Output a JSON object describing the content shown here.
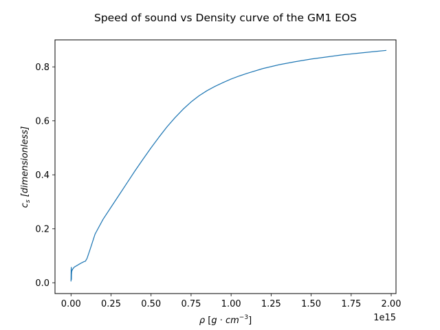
{
  "chart_data": {
    "type": "line",
    "title": "Speed of sound vs Density curve of the GM1 EOS",
    "xlabel": {
      "symbol": "ρ",
      "unit_open": " [",
      "unit_g": "g",
      "unit_dot": " · ",
      "unit_cm": "cm",
      "unit_exp": "−3",
      "unit_close": "]"
    },
    "ylabel": {
      "symbol": "c",
      "sub": "s",
      "unit": " [dimensionless]"
    },
    "x_offset_label": "1e15",
    "xlim": [
      -0.1,
      2.03
    ],
    "ylim": [
      -0.04,
      0.9
    ],
    "grid": false,
    "x_tick_values": [
      0.0,
      0.25,
      0.5,
      0.75,
      1.0,
      1.25,
      1.5,
      1.75,
      2.0
    ],
    "x_tick_labels": [
      "0.00",
      "0.25",
      "0.50",
      "0.75",
      "1.00",
      "1.25",
      "1.50",
      "1.75",
      "2.00"
    ],
    "y_tick_values": [
      0.0,
      0.2,
      0.4,
      0.6,
      0.8
    ],
    "y_tick_labels": [
      "0.0",
      "0.2",
      "0.4",
      "0.6",
      "0.8"
    ],
    "series": [
      {
        "color": "#1f77b4",
        "x": [
          0.0,
          0.001,
          0.002,
          0.0025,
          0.003,
          0.004,
          0.006,
          0.01,
          0.02,
          0.04,
          0.06,
          0.08,
          0.09,
          0.1,
          0.12,
          0.15,
          0.2,
          0.25,
          0.3,
          0.35,
          0.4,
          0.45,
          0.5,
          0.55,
          0.6,
          0.65,
          0.7,
          0.75,
          0.8,
          0.85,
          0.9,
          0.95,
          1.0,
          1.05,
          1.1,
          1.2,
          1.3,
          1.4,
          1.5,
          1.6,
          1.7,
          1.8,
          1.9,
          1.97
        ],
        "y": [
          0.005,
          0.05,
          0.057,
          0.012,
          0.03,
          0.04,
          0.045,
          0.05,
          0.058,
          0.065,
          0.072,
          0.078,
          0.08,
          0.09,
          0.125,
          0.18,
          0.235,
          0.28,
          0.325,
          0.37,
          0.415,
          0.458,
          0.5,
          0.54,
          0.578,
          0.612,
          0.643,
          0.67,
          0.693,
          0.712,
          0.728,
          0.742,
          0.755,
          0.766,
          0.776,
          0.794,
          0.808,
          0.819,
          0.829,
          0.837,
          0.845,
          0.851,
          0.857,
          0.861
        ]
      }
    ]
  }
}
